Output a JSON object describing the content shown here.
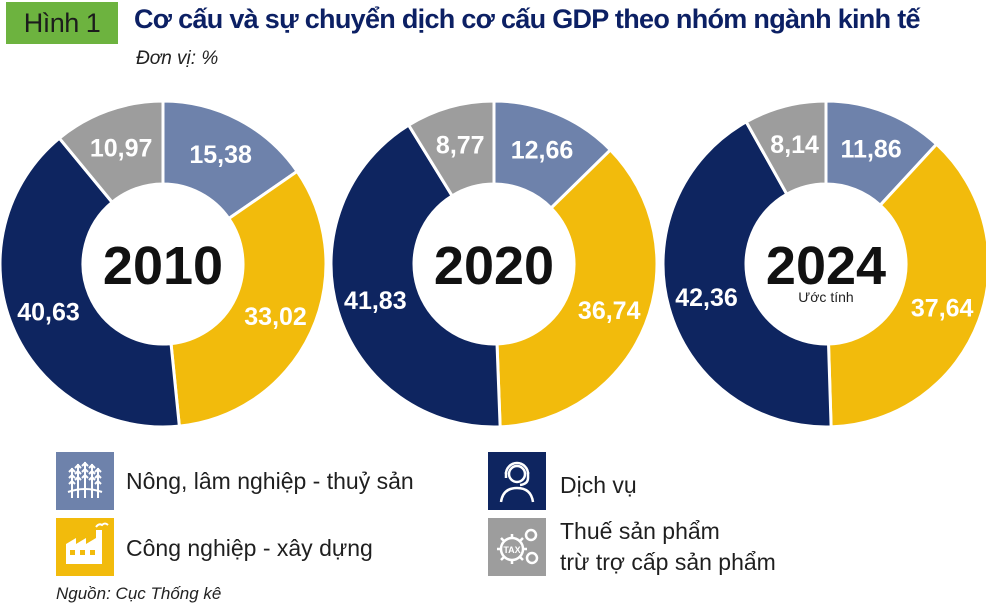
{
  "header": {
    "badge": "Hình 1",
    "title": "Cơ cấu và sự chuyển dịch cơ cấu GDP theo nhóm ngành kinh tế",
    "unit": "Đơn vị: %"
  },
  "colors": {
    "agriculture": "#6e82ab",
    "industry": "#f2bb0c",
    "services": "#0e2560",
    "tax": "#9d9d9d",
    "badge": "#6db33f",
    "title": "#0c2064"
  },
  "chart_data": [
    {
      "type": "pie",
      "variant": "donut",
      "year": "2010",
      "note": "",
      "categories": [
        "Nông, lâm nghiệp - thuỷ sản",
        "Công nghiệp - xây dựng",
        "Dịch vụ",
        "Thuế sản phẩm trừ trợ cấp sản phẩm"
      ],
      "values": [
        15.38,
        33.02,
        40.63,
        10.97
      ],
      "labels": [
        "15,38",
        "33,02",
        "40,63",
        "10,97"
      ]
    },
    {
      "type": "pie",
      "variant": "donut",
      "year": "2020",
      "note": "",
      "categories": [
        "Nông, lâm nghiệp - thuỷ sản",
        "Công nghiệp - xây dựng",
        "Dịch vụ",
        "Thuế sản phẩm trừ trợ cấp sản phẩm"
      ],
      "values": [
        12.66,
        36.74,
        41.83,
        8.77
      ],
      "labels": [
        "12,66",
        "36,74",
        "41,83",
        "8,77"
      ]
    },
    {
      "type": "pie",
      "variant": "donut",
      "year": "2024",
      "note": "Ước tính",
      "categories": [
        "Nông, lâm nghiệp - thuỷ sản",
        "Công nghiệp - xây dựng",
        "Dịch vụ",
        "Thuế sản phẩm trừ trợ cấp sản phẩm"
      ],
      "values": [
        11.86,
        37.64,
        42.36,
        8.14
      ],
      "labels": [
        "11,86",
        "37,64",
        "42,36",
        "8,14"
      ]
    }
  ],
  "legend": {
    "agriculture": {
      "label": "Nông, lâm nghiệp - thuỷ sản",
      "icon": "wheat-icon"
    },
    "industry": {
      "label": "Công nghiệp - xây dựng",
      "icon": "factory-icon"
    },
    "services": {
      "label": "Dịch vụ",
      "icon": "service-person-icon"
    },
    "tax": {
      "label_line1": "Thuế sản phẩm",
      "label_line2": "trừ trợ cấp sản phẩm",
      "icon": "tax-gears-icon",
      "icon_text": "TAX"
    }
  },
  "source": "Nguồn: Cục Thống kê"
}
